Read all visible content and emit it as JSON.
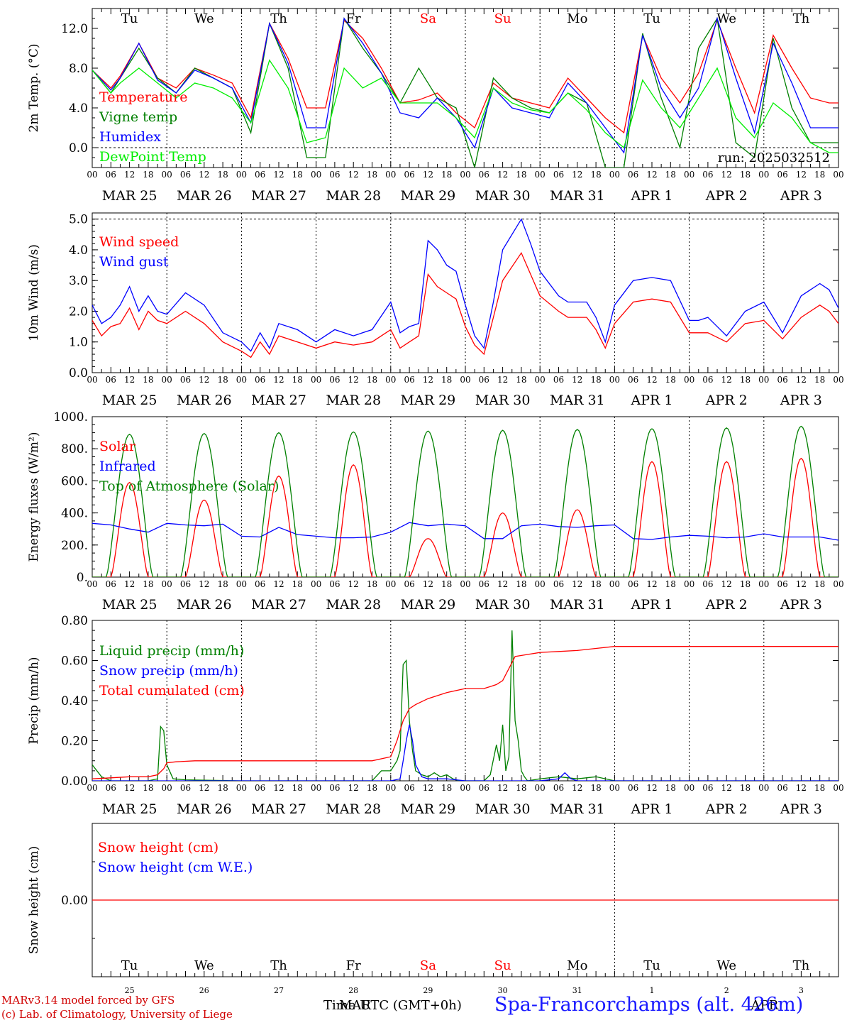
{
  "colors": {
    "red": "#ff0000",
    "darkgreen": "#008000",
    "blue": "#0000ff",
    "lightgreen": "#00ee00",
    "black": "#000000",
    "weekend": "#ff0000"
  },
  "days_top": [
    "Tu",
    "We",
    "Th",
    "Fr",
    "Sa",
    "Su",
    "Mo",
    "Tu",
    "We",
    "Th"
  ],
  "days_weekend": [
    false,
    false,
    false,
    false,
    true,
    true,
    false,
    false,
    false,
    false
  ],
  "date_labels": [
    "MAR 25",
    "MAR 26",
    "MAR 27",
    "MAR 28",
    "MAR 29",
    "MAR 30",
    "MAR 31",
    "APR  1",
    "APR  2",
    "APR  3"
  ],
  "hour_ticks": [
    "00",
    "06",
    "12",
    "18"
  ],
  "hour_end": "00",
  "bottom_day_numbers": [
    "25",
    "26",
    "27",
    "28",
    "29",
    "30",
    "31",
    "1",
    "2",
    "3"
  ],
  "bottom_month": "APR",
  "run_label": "run: 2025032512",
  "footer": {
    "model": "MARv3.14 model forced by GFS",
    "copyright": "(c) Lab. of Climatology, University of Liege",
    "time_label": "Time UTC (GMT+0h)",
    "time_overlap": "MAR",
    "station": "Spa-Francorchamps (alt. 426m)"
  },
  "chart_data": [
    {
      "type": "line",
      "ylabel": "2m Temp. (°C)",
      "ylim": [
        -2,
        14
      ],
      "yticks": [
        "12.0",
        "8.0",
        "4.0",
        "0.0"
      ],
      "ytick_values": [
        12,
        8,
        4,
        0
      ],
      "x_unit": "hours since MAR 25 00 UTC",
      "xlim": [
        0,
        240
      ],
      "series": [
        {
          "name": "Temperature",
          "color": "#ff0000",
          "x": [
            0,
            6,
            9,
            15,
            21,
            27,
            33,
            39,
            45,
            51,
            57,
            63,
            69,
            75,
            81,
            87,
            93,
            99,
            105,
            111,
            117,
            123,
            129,
            135,
            141,
            147,
            153,
            159,
            165,
            171,
            177,
            183,
            189,
            195,
            201,
            207,
            213,
            219,
            225,
            231,
            237,
            240
          ],
          "y": [
            7.8,
            6.0,
            7.2,
            10.5,
            7.0,
            6.0,
            8.0,
            7.3,
            6.5,
            3.0,
            12.5,
            9.0,
            4.0,
            4.0,
            12.8,
            11.0,
            8.0,
            4.5,
            4.8,
            5.5,
            3.5,
            2.0,
            6.5,
            5.0,
            4.5,
            4.0,
            7.0,
            5.0,
            3.0,
            1.5,
            11.3,
            7.0,
            4.5,
            7.5,
            12.8,
            8.0,
            3.5,
            11.3,
            8.0,
            5.0,
            4.5,
            4.5
          ]
        },
        {
          "name": "Vigne temp",
          "color": "#008000",
          "x": [
            0,
            6,
            9,
            15,
            21,
            27,
            33,
            39,
            45,
            51,
            57,
            63,
            69,
            75,
            81,
            87,
            93,
            99,
            105,
            111,
            117,
            123,
            129,
            135,
            141,
            147,
            153,
            159,
            165,
            171,
            177,
            183,
            189,
            195,
            201,
            207,
            213,
            219,
            225,
            231,
            237,
            240
          ],
          "y": [
            7.8,
            5.5,
            7.0,
            10.0,
            7.0,
            5.5,
            8.0,
            7.0,
            6.0,
            1.5,
            12.5,
            8.0,
            -1.0,
            -1.0,
            13.0,
            10.0,
            7.5,
            4.5,
            8.0,
            5.0,
            4.0,
            -2.0,
            7.0,
            5.0,
            4.0,
            3.5,
            5.5,
            4.5,
            -2.0,
            -2.0,
            11.5,
            5.0,
            0.0,
            10.0,
            13.0,
            0.5,
            -1.0,
            11.0,
            4.0,
            0.5,
            0.5,
            0.5
          ]
        },
        {
          "name": "Humidex",
          "color": "#0000ff",
          "x": [
            0,
            6,
            9,
            15,
            21,
            27,
            33,
            39,
            45,
            51,
            57,
            63,
            69,
            75,
            81,
            87,
            93,
            99,
            105,
            111,
            117,
            123,
            129,
            135,
            141,
            147,
            153,
            159,
            165,
            171,
            177,
            183,
            189,
            195,
            201,
            207,
            213,
            219,
            225,
            231,
            237,
            240
          ],
          "y": [
            7.8,
            5.8,
            7.0,
            10.5,
            6.8,
            5.5,
            7.8,
            7.0,
            6.0,
            2.5,
            12.5,
            8.5,
            2.0,
            2.0,
            13.0,
            10.5,
            7.5,
            3.5,
            3.0,
            5.0,
            3.0,
            0.0,
            6.0,
            4.0,
            3.5,
            3.0,
            6.5,
            4.5,
            2.0,
            -0.5,
            11.3,
            6.0,
            3.0,
            6.0,
            13.0,
            7.0,
            1.5,
            10.5,
            6.5,
            2.0,
            2.0,
            2.0
          ]
        },
        {
          "name": "DewPoint Temp",
          "color": "#00ee00",
          "x": [
            0,
            6,
            9,
            15,
            21,
            27,
            33,
            39,
            45,
            51,
            57,
            63,
            69,
            75,
            81,
            87,
            93,
            99,
            105,
            111,
            117,
            123,
            129,
            135,
            141,
            147,
            153,
            159,
            165,
            171,
            177,
            183,
            189,
            195,
            201,
            207,
            213,
            219,
            225,
            231,
            237,
            240
          ],
          "y": [
            7.8,
            5.5,
            6.5,
            8.0,
            6.5,
            5.0,
            6.5,
            6.0,
            5.0,
            2.5,
            8.8,
            6.0,
            0.5,
            1.0,
            8.0,
            6.0,
            7.0,
            4.5,
            4.5,
            4.5,
            3.0,
            1.0,
            6.0,
            4.5,
            3.8,
            3.5,
            5.5,
            3.8,
            1.5,
            0.0,
            6.8,
            4.0,
            2.0,
            5.0,
            8.0,
            3.0,
            1.0,
            4.5,
            3.0,
            0.5,
            -0.5,
            -0.5
          ]
        }
      ]
    },
    {
      "type": "line",
      "ylabel": "10m Wind (m/s)",
      "ylim": [
        0,
        5.2
      ],
      "yticks": [
        "5.0",
        "4.0",
        "3.0",
        "2.0",
        "1.0",
        "0.0"
      ],
      "ytick_values": [
        5,
        4,
        3,
        2,
        1,
        0
      ],
      "x_unit": "hours since MAR 25 00 UTC",
      "xlim": [
        0,
        240
      ],
      "series": [
        {
          "name": "Wind speed",
          "color": "#ff0000",
          "x": [
            0,
            3,
            6,
            9,
            12,
            15,
            18,
            21,
            24,
            30,
            36,
            42,
            48,
            51,
            54,
            57,
            60,
            66,
            72,
            78,
            84,
            90,
            96,
            99,
            102,
            105,
            108,
            111,
            114,
            117,
            120,
            123,
            126,
            129,
            132,
            138,
            141,
            144,
            150,
            153,
            156,
            159,
            162,
            165,
            168,
            174,
            180,
            186,
            192,
            195,
            198,
            204,
            210,
            216,
            222,
            228,
            234,
            237,
            240
          ],
          "y": [
            1.7,
            1.2,
            1.5,
            1.6,
            2.1,
            1.4,
            2.0,
            1.7,
            1.6,
            2.0,
            1.6,
            1.0,
            0.7,
            0.5,
            1.0,
            0.6,
            1.2,
            1.0,
            0.8,
            1.0,
            0.9,
            1.0,
            1.4,
            0.8,
            1.0,
            1.2,
            3.2,
            2.8,
            2.6,
            2.4,
            1.5,
            0.9,
            0.6,
            1.8,
            3.0,
            3.9,
            3.2,
            2.5,
            2.0,
            1.8,
            1.8,
            1.8,
            1.4,
            0.8,
            1.6,
            2.3,
            2.4,
            2.3,
            1.3,
            1.3,
            1.3,
            1.0,
            1.6,
            1.7,
            1.1,
            1.8,
            2.2,
            2.0,
            1.6
          ]
        },
        {
          "name": "Wind gust",
          "color": "#0000ff",
          "x": [
            0,
            3,
            6,
            9,
            12,
            15,
            18,
            21,
            24,
            30,
            36,
            42,
            48,
            51,
            54,
            57,
            60,
            66,
            72,
            78,
            84,
            90,
            96,
            99,
            102,
            105,
            108,
            111,
            114,
            117,
            120,
            123,
            126,
            129,
            132,
            138,
            141,
            144,
            150,
            153,
            156,
            159,
            162,
            165,
            168,
            174,
            180,
            186,
            192,
            195,
            198,
            204,
            210,
            216,
            222,
            228,
            234,
            237,
            240
          ],
          "y": [
            2.2,
            1.6,
            1.8,
            2.2,
            2.8,
            2.0,
            2.5,
            2.0,
            1.9,
            2.6,
            2.2,
            1.3,
            1.0,
            0.7,
            1.3,
            0.8,
            1.6,
            1.4,
            1.0,
            1.4,
            1.2,
            1.4,
            2.3,
            1.3,
            1.5,
            1.6,
            4.3,
            4.0,
            3.5,
            3.3,
            2.2,
            1.2,
            0.8,
            2.3,
            4.0,
            5.0,
            4.2,
            3.3,
            2.5,
            2.3,
            2.3,
            2.3,
            1.8,
            1.0,
            2.2,
            3.0,
            3.1,
            3.0,
            1.7,
            1.7,
            1.8,
            1.2,
            2.0,
            2.3,
            1.3,
            2.5,
            2.9,
            2.7,
            2.1
          ]
        }
      ]
    },
    {
      "type": "line",
      "ylabel": "Energy fluxes (W/m²)",
      "ylim": [
        0,
        1000
      ],
      "yticks": [
        "1000.",
        "800.",
        "600.",
        "400.",
        "200.",
        "0."
      ],
      "ytick_values": [
        1000,
        800,
        600,
        400,
        200,
        0
      ],
      "x_unit": "hours since MAR 25 00 UTC",
      "xlim": [
        0,
        240
      ],
      "day_peaks": {
        "top_of_atmosphere": [
          890,
          895,
          900,
          905,
          910,
          915,
          920,
          925,
          930,
          940
        ],
        "solar": [
          590,
          480,
          630,
          700,
          240,
          400,
          420,
          720,
          720,
          740
        ]
      },
      "series": [
        {
          "name": "Solar",
          "color": "#ff0000"
        },
        {
          "name": "Infrared",
          "color": "#0000ff",
          "x": [
            0,
            6,
            12,
            18,
            24,
            30,
            36,
            42,
            48,
            54,
            60,
            66,
            72,
            78,
            84,
            90,
            96,
            102,
            108,
            114,
            120,
            126,
            132,
            138,
            144,
            150,
            156,
            162,
            168,
            174,
            180,
            186,
            192,
            198,
            204,
            210,
            216,
            222,
            228,
            234,
            240
          ],
          "y": [
            335,
            325,
            300,
            280,
            335,
            325,
            320,
            330,
            255,
            250,
            310,
            265,
            255,
            245,
            245,
            250,
            280,
            340,
            320,
            330,
            320,
            240,
            240,
            320,
            330,
            315,
            310,
            320,
            325,
            240,
            235,
            250,
            260,
            255,
            245,
            250,
            270,
            250,
            250,
            250,
            230
          ]
        },
        {
          "name": "Top of Atmosphere (Solar)",
          "color": "#008000"
        }
      ]
    },
    {
      "type": "line",
      "ylabel": "Precip (mm/h)",
      "ylim": [
        0,
        0.8
      ],
      "yticks": [
        "0.80",
        "0.60",
        "0.40",
        "0.20",
        "0.00"
      ],
      "ytick_values": [
        0.8,
        0.6,
        0.4,
        0.2,
        0
      ],
      "x_unit": "hours since MAR 25 00 UTC",
      "xlim": [
        0,
        240
      ],
      "series": [
        {
          "name": "Liquid precip (mm/h)",
          "color": "#008000",
          "x": [
            0,
            3,
            6,
            18,
            21,
            22,
            23,
            24,
            26,
            30,
            48,
            72,
            90,
            93,
            96,
            98,
            99,
            100,
            101,
            102,
            103,
            104,
            106,
            108,
            110,
            112,
            114,
            116,
            118,
            120,
            126,
            128,
            130,
            131,
            132,
            133,
            134,
            135,
            136,
            137,
            138,
            139,
            140,
            144,
            150,
            156,
            162,
            168,
            240
          ],
          "y": [
            0.08,
            0.02,
            0,
            0,
            0.01,
            0.27,
            0.25,
            0.08,
            0.01,
            0.005,
            0,
            0,
            0,
            0.05,
            0.05,
            0.1,
            0.15,
            0.58,
            0.6,
            0.3,
            0.15,
            0.05,
            0.03,
            0.02,
            0.04,
            0.02,
            0.03,
            0.01,
            0,
            0,
            0,
            0.03,
            0.18,
            0.1,
            0.28,
            0.05,
            0.12,
            0.75,
            0.3,
            0.2,
            0.05,
            0.02,
            0,
            0.01,
            0.02,
            0.01,
            0.02,
            0,
            0
          ]
        },
        {
          "name": "Snow precip (mm/h)",
          "color": "#0000ff",
          "x": [
            0,
            96,
            99,
            100,
            101,
            102,
            103,
            104,
            106,
            108,
            114,
            120,
            144,
            150,
            152,
            154,
            156,
            168,
            240
          ],
          "y": [
            0,
            0,
            0.01,
            0.1,
            0.2,
            0.28,
            0.2,
            0.08,
            0.02,
            0.01,
            0.01,
            0,
            0,
            0.01,
            0.04,
            0.01,
            0,
            0,
            0
          ]
        },
        {
          "name": "Total cumulated (cm)",
          "color": "#ff0000",
          "x": [
            0,
            6,
            12,
            18,
            21,
            23,
            24,
            27,
            33,
            48,
            72,
            90,
            96,
            98,
            100,
            102,
            104,
            108,
            114,
            120,
            126,
            128,
            130,
            132,
            134,
            136,
            140,
            144,
            150,
            156,
            162,
            168,
            240
          ],
          "y": [
            0.01,
            0.015,
            0.02,
            0.02,
            0.03,
            0.06,
            0.09,
            0.095,
            0.1,
            0.1,
            0.1,
            0.1,
            0.12,
            0.2,
            0.3,
            0.36,
            0.38,
            0.41,
            0.44,
            0.46,
            0.46,
            0.47,
            0.48,
            0.5,
            0.56,
            0.62,
            0.63,
            0.64,
            0.645,
            0.65,
            0.66,
            0.67,
            0.67
          ]
        }
      ]
    },
    {
      "type": "line",
      "ylabel": "Snow height (cm)",
      "ylim": [
        -1,
        1
      ],
      "yticks": [
        "0.00"
      ],
      "ytick_values": [
        0
      ],
      "x_unit": "hours since MAR 25 00 UTC",
      "xlim": [
        0,
        240
      ],
      "series": [
        {
          "name": "Snow height (cm)",
          "color": "#ff0000",
          "x": [
            0,
            240
          ],
          "y": [
            0,
            0
          ]
        },
        {
          "name": "Snow height (cm W.E.)",
          "color": "#0000ff"
        }
      ]
    }
  ]
}
